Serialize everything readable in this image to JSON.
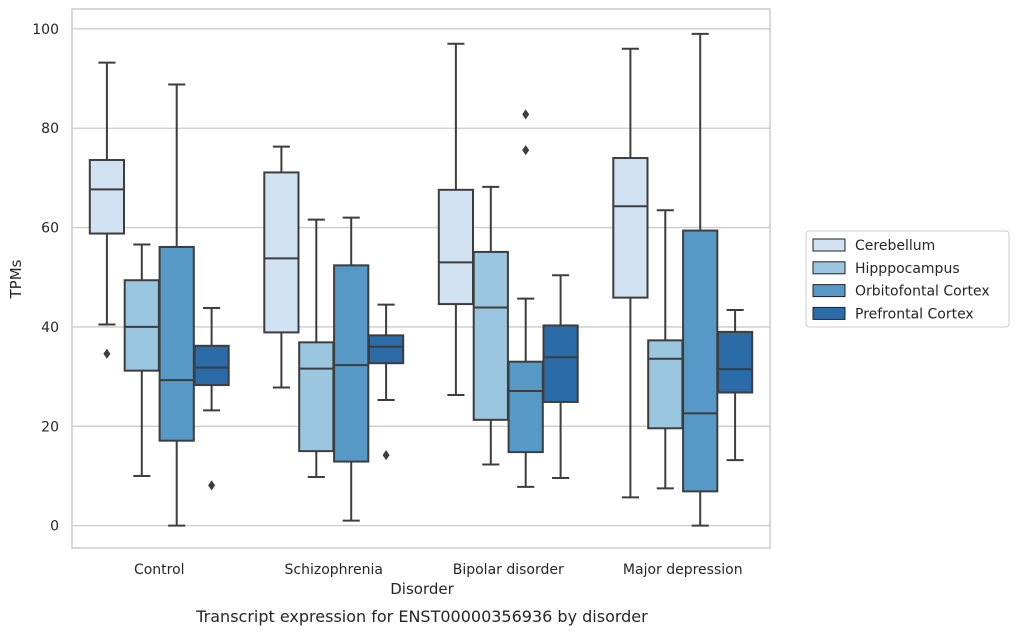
{
  "caption": "Transcript expression for ENST00000356936 by disorder",
  "chart_data": {
    "type": "boxplot",
    "xlabel": "Disorder",
    "ylabel": "TPMs",
    "ylim": [
      -4.5,
      104
    ],
    "yticks": [
      0,
      20,
      40,
      60,
      80,
      100
    ],
    "grid": true,
    "legend_position": "right",
    "categories": [
      "Control",
      "Schizophrenia",
      "Bipolar disorder",
      "Major depression"
    ],
    "series": [
      {
        "name": "Cerebellum",
        "color": "#d1e2f2",
        "boxes": [
          {
            "whisker_low": 40.5,
            "q1": 58.8,
            "median": 67.7,
            "q3": 73.6,
            "whisker_high": 93.2,
            "outliers": [
              34.6
            ]
          },
          {
            "whisker_low": 27.8,
            "q1": 38.9,
            "median": 53.8,
            "q3": 71.1,
            "whisker_high": 76.3,
            "outliers": []
          },
          {
            "whisker_low": 26.3,
            "q1": 44.6,
            "median": 53.0,
            "q3": 67.6,
            "whisker_high": 97.0,
            "outliers": []
          },
          {
            "whisker_low": 5.7,
            "q1": 45.9,
            "median": 64.3,
            "q3": 74.0,
            "whisker_high": 96.0,
            "outliers": []
          }
        ]
      },
      {
        "name": "Hipppocampus",
        "color": "#9ac6df",
        "boxes": [
          {
            "whisker_low": 10.0,
            "q1": 31.2,
            "median": 40.0,
            "q3": 49.4,
            "whisker_high": 56.6,
            "outliers": []
          },
          {
            "whisker_low": 9.8,
            "q1": 15.0,
            "median": 31.6,
            "q3": 36.9,
            "whisker_high": 61.6,
            "outliers": []
          },
          {
            "whisker_low": 12.3,
            "q1": 21.3,
            "median": 43.9,
            "q3": 55.1,
            "whisker_high": 68.2,
            "outliers": []
          },
          {
            "whisker_low": 7.5,
            "q1": 19.6,
            "median": 33.6,
            "q3": 37.3,
            "whisker_high": 63.5,
            "outliers": []
          }
        ]
      },
      {
        "name": "Orbitofontal Cortex",
        "color": "#5799c6",
        "boxes": [
          {
            "whisker_low": 0.0,
            "q1": 17.1,
            "median": 29.3,
            "q3": 56.1,
            "whisker_high": 88.8,
            "outliers": []
          },
          {
            "whisker_low": 1.0,
            "q1": 12.9,
            "median": 32.3,
            "q3": 52.4,
            "whisker_high": 62.0,
            "outliers": []
          },
          {
            "whisker_low": 7.8,
            "q1": 14.8,
            "median": 27.1,
            "q3": 33.0,
            "whisker_high": 45.7,
            "outliers": [
              75.6,
              82.8
            ]
          },
          {
            "whisker_low": 0.0,
            "q1": 6.9,
            "median": 22.6,
            "q3": 59.4,
            "whisker_high": 99.0,
            "outliers": []
          }
        ]
      },
      {
        "name": "Prefrontal Cortex",
        "color": "#2b6ca8",
        "boxes": [
          {
            "whisker_low": 23.2,
            "q1": 28.3,
            "median": 31.8,
            "q3": 36.2,
            "whisker_high": 43.8,
            "outliers": [
              8.1
            ]
          },
          {
            "whisker_low": 25.3,
            "q1": 32.7,
            "median": 36.0,
            "q3": 38.3,
            "whisker_high": 44.5,
            "outliers": [
              14.2
            ]
          },
          {
            "whisker_low": 9.6,
            "q1": 24.9,
            "median": 33.9,
            "q3": 40.3,
            "whisker_high": 50.4,
            "outliers": []
          },
          {
            "whisker_low": 13.2,
            "q1": 26.8,
            "median": 31.5,
            "q3": 39.0,
            "whisker_high": 43.4,
            "outliers": []
          }
        ]
      }
    ]
  }
}
